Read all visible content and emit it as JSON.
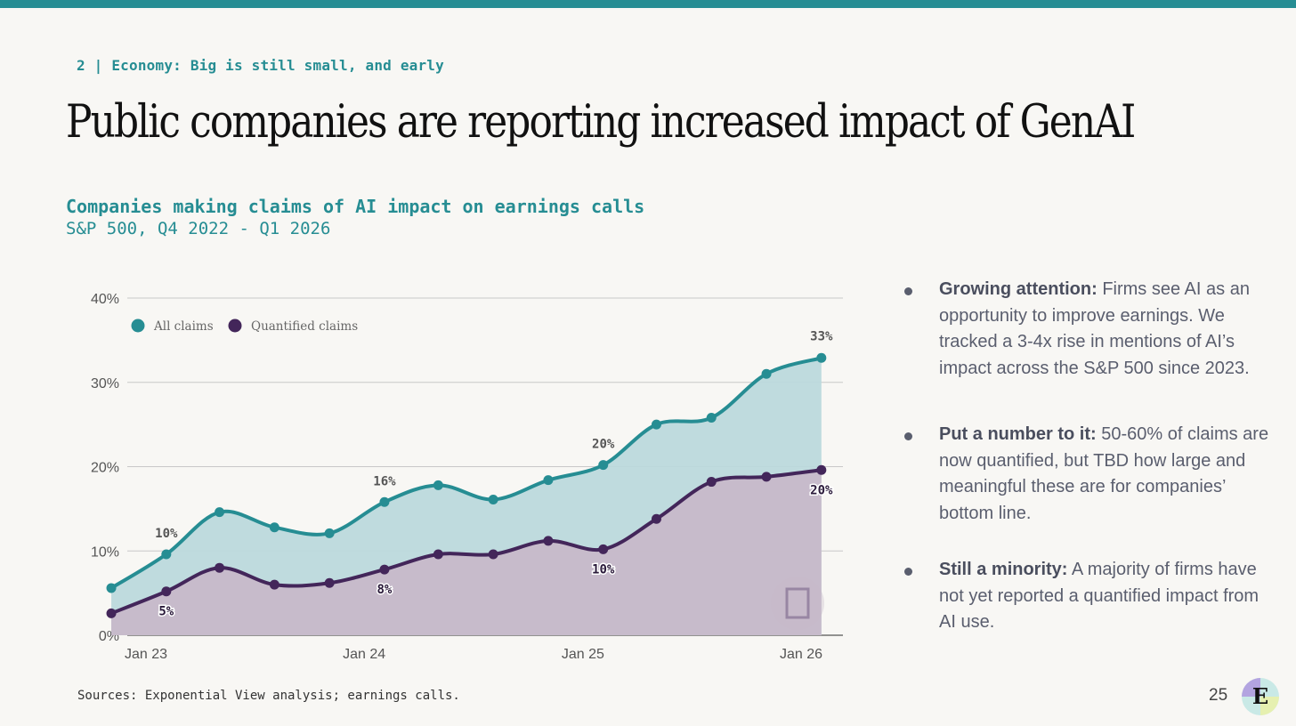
{
  "section": "2 | Economy: Big is still small, and early",
  "title": "Public companies are reporting increased impact of GenAI",
  "chart_title": "Companies making claims of AI impact on earnings calls",
  "chart_subtitle": "S&P 500, Q4 2022 - Q1 2026",
  "chart_data": {
    "type": "area",
    "title": "Companies making claims of AI impact on earnings calls",
    "subtitle": "S&P 500, Q4 2022 - Q1 2026",
    "x": [
      "2022-11-01",
      "2023-02-01",
      "2023-05-01",
      "2023-08-01",
      "2023-11-01",
      "2024-02-01",
      "2024-05-01",
      "2024-08-01",
      "2024-11-01",
      "2025-02-01",
      "2025-05-01",
      "2025-08-01",
      "2025-11-01",
      "2026-02-01"
    ],
    "x_ticks": [
      "Jan 23",
      "Jan 24",
      "Jan 25",
      "Jan 26"
    ],
    "y_ticks": [
      "0%",
      "10%",
      "20%",
      "30%",
      "40%"
    ],
    "ylim": [
      0,
      40
    ],
    "grid": true,
    "legend": "top-left",
    "series": [
      {
        "name": "All claims",
        "color": "#268d93",
        "fill": "#bcd9dc",
        "values": [
          5.6,
          9.6,
          14.6,
          12.8,
          12.1,
          15.8,
          17.8,
          16.1,
          18.4,
          20.2,
          25.0,
          25.8,
          31.0,
          32.9
        ],
        "labels": [
          {
            "index": 1,
            "text": "10%"
          },
          {
            "index": 5,
            "text": "16%"
          },
          {
            "index": 9,
            "text": "20%"
          },
          {
            "index": 13,
            "text": "33%"
          }
        ]
      },
      {
        "name": "Quantified claims",
        "color": "#43265a",
        "fill": "#c7b9c9",
        "values": [
          2.6,
          5.2,
          8.0,
          6.0,
          6.2,
          7.8,
          9.6,
          9.6,
          11.2,
          10.2,
          13.8,
          18.2,
          18.8,
          19.6
        ],
        "labels": [
          {
            "index": 1,
            "text": "5%"
          },
          {
            "index": 5,
            "text": "8%"
          },
          {
            "index": 9,
            "text": "10%"
          },
          {
            "index": 13,
            "text": "20%"
          }
        ]
      }
    ]
  },
  "bullets": [
    {
      "heading": "Growing attention:",
      "text": " Firms see AI as an opportunity to improve earnings. We tracked a 3-4x rise in mentions of AI’s impact across the S&P 500 since 2023."
    },
    {
      "heading": "Put a number to it:",
      "text": " 50-60% of claims are now quantified, but TBD how large and meaningful these are for companies’ bottom line."
    },
    {
      "heading": "Still a minority:",
      "text": " A majority of firms have not yet reported a quantified impact from AI use."
    }
  ],
  "sources": "Sources: Exponential View analysis; earnings calls.",
  "page_number": "25",
  "logo_letter": "E"
}
